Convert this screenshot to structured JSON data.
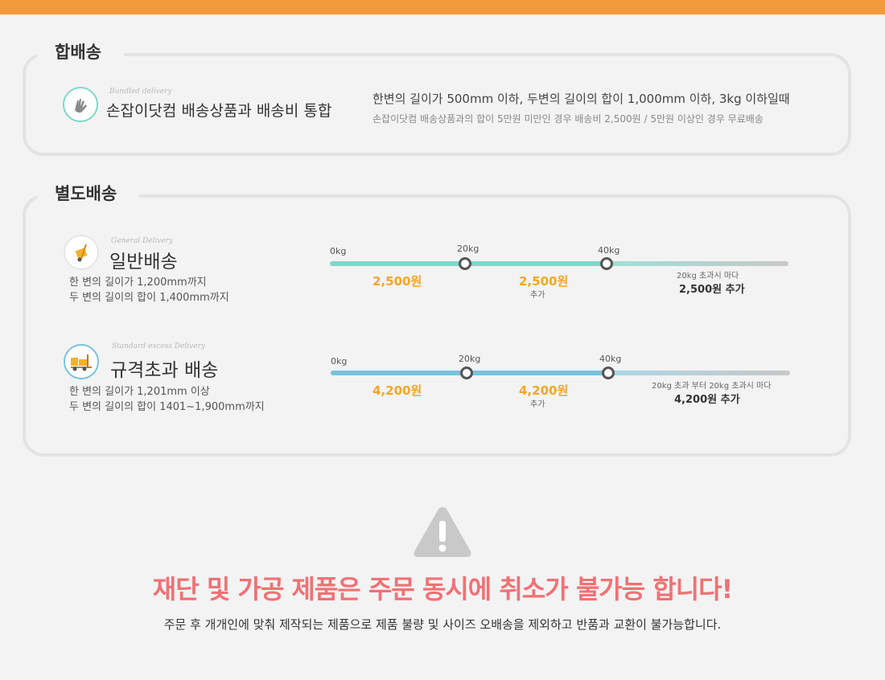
{
  "bundled": {
    "label": "합배송",
    "en": "Bundled delivery",
    "title": "손잡이닷컴 배송상품과 배송비 통합",
    "line1": "한변의 길이가 500mm 이하, 두변의 길이의 합이 1,000mm 이하, 3kg 이하일때",
    "line2": "손잡이닷컴 배송상품과의 합이 5만원 미만인 경우 배송비 2,500원 / 5만원 이상인 경우 무료배송",
    "icon": "hand-icon"
  },
  "separate": {
    "label": "별도배송",
    "general": {
      "en": "General Delivery",
      "title": "일반배송",
      "desc1": "한 변의 길이가 1,200mm까지",
      "desc2": "두 변의 길이의 합이 1,400mm까지",
      "icon": "hand-truck-icon",
      "w0": "0kg",
      "w20": "20kg",
      "w40": "40kg",
      "price1": "2,500원",
      "price2": "2,500원",
      "extra": "추가",
      "over_note": "20kg 초과시 마다",
      "over_price": "2,500원 추가",
      "color": "#7fd7c9"
    },
    "oversize": {
      "en": "Standard excess Delivery",
      "title": "규격초과 배송",
      "desc1": "한 변의 길이가 1,201mm 이상",
      "desc2": "두 변의 길이의 합이 1401~1,900mm까지",
      "icon": "forklift-icon",
      "w0": "0kg",
      "w20": "20kg",
      "w40": "40kg",
      "price1": "4,200원",
      "price2": "4,200원",
      "extra": "추가",
      "over_note": "20kg 초과 부터 20kg 초과시 마다",
      "over_price": "4,200원 추가",
      "color": "#79c2dc"
    }
  },
  "warning": {
    "icon": "warning-triangle-icon",
    "title": "재단 및 가공 제품은 주문 동시에 취소가 불가능 합니다!",
    "subtitle": "주문 후 개개인에 맞춰 제작되는 제품으로 제품 불량 및 사이즈 오배송을 제외하고 반품과 교환이 불가능합니다."
  },
  "colors": {
    "accent": "#f39a3f",
    "warning_red": "#f07175",
    "price_orange": "#f5a623"
  }
}
